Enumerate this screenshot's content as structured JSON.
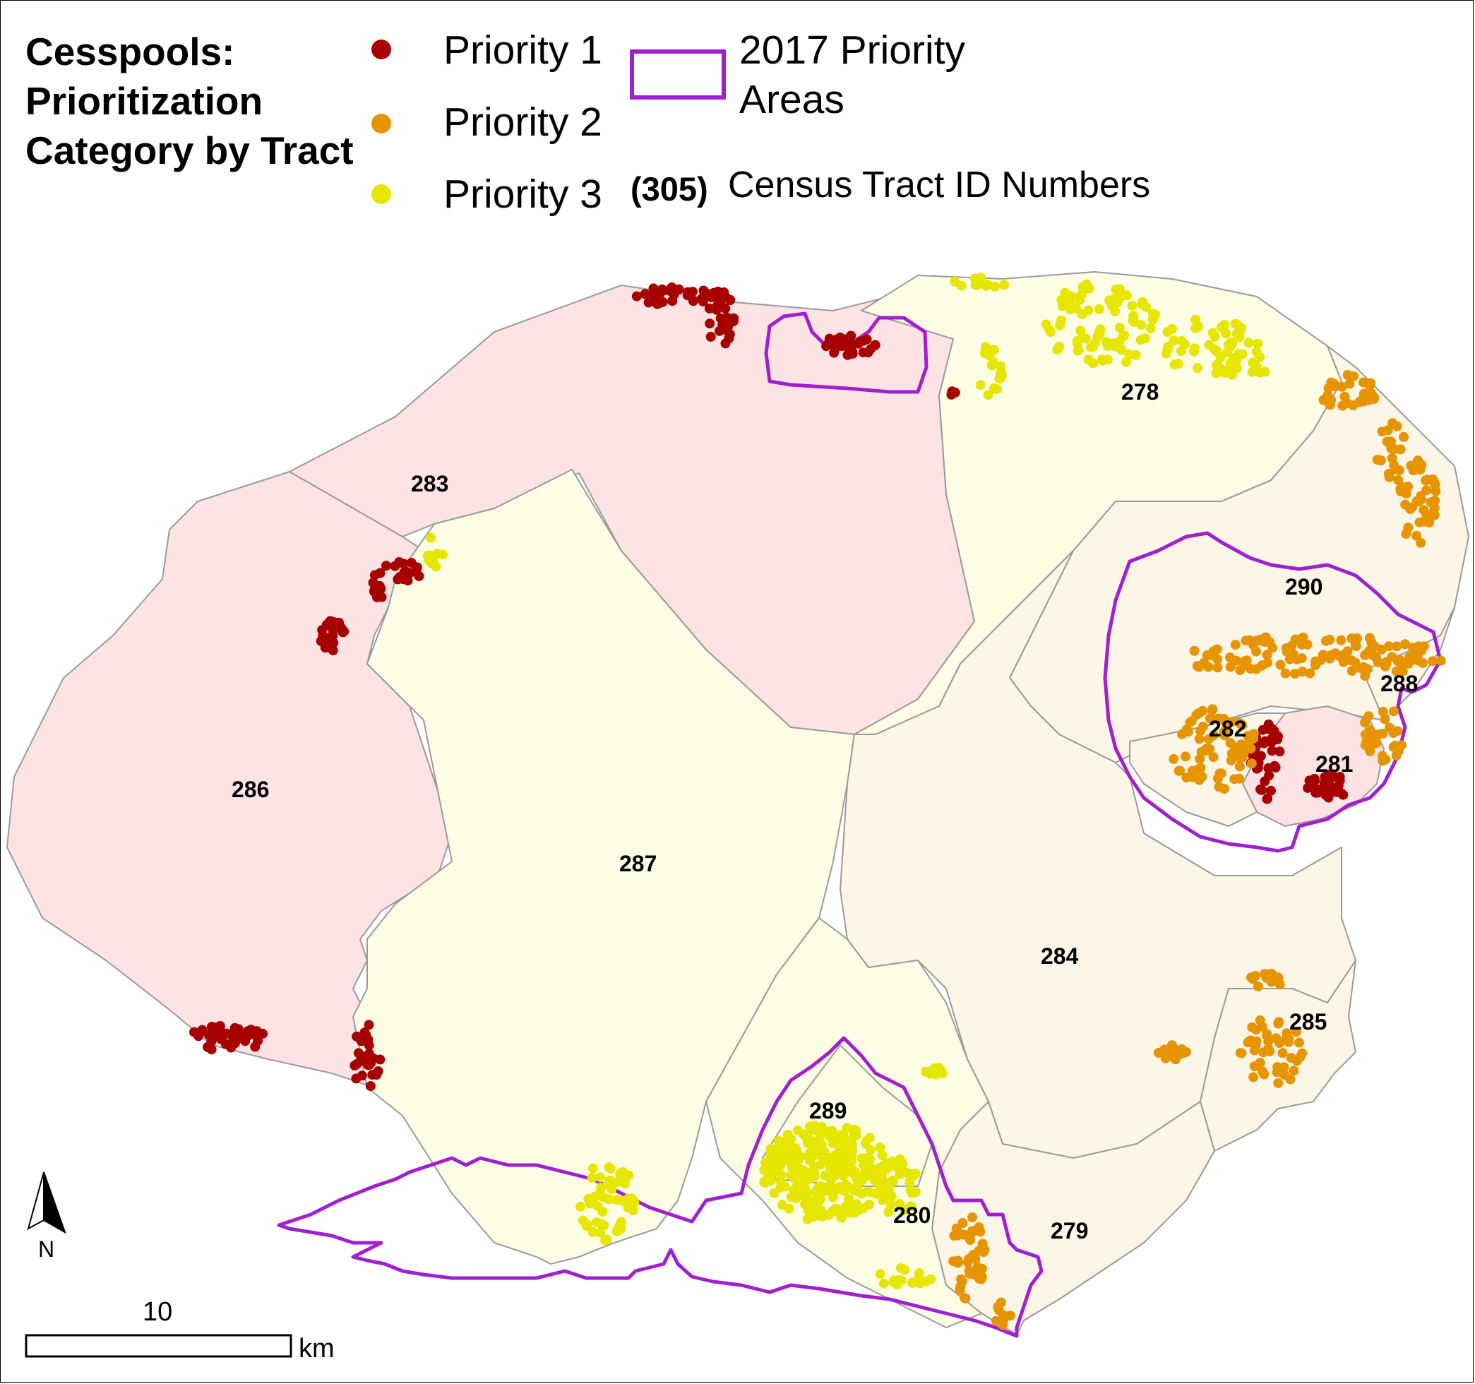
{
  "legend": {
    "title": "Cesspools: Prioritization Category by Tract",
    "priority1": {
      "label": "Priority 1",
      "color": "#a60000"
    },
    "priority2": {
      "label": "Priority 2",
      "color": "#e69500"
    },
    "priority3": {
      "label": "Priority 3",
      "color": "#e6e600"
    },
    "areas_line1": "2017 Priority",
    "areas_line2": "Areas",
    "areas_color": "#a020d0",
    "tract_id_example": "(305)",
    "tract_id_label": "Census Tract ID Numbers"
  },
  "tracts": [
    {
      "id": "278"
    },
    {
      "id": "279"
    },
    {
      "id": "280"
    },
    {
      "id": "281"
    },
    {
      "id": "282"
    },
    {
      "id": "283"
    },
    {
      "id": "284"
    },
    {
      "id": "285"
    },
    {
      "id": "286"
    },
    {
      "id": "287"
    },
    {
      "id": "288"
    },
    {
      "id": "289"
    },
    {
      "id": "290"
    }
  ],
  "fill_colors": {
    "priority1": "#fde3e3",
    "priority2": "#fdf5e6",
    "priority3": "#fdfde6",
    "boundary": "#9a9a9a"
  },
  "north_arrow": {
    "label": "N"
  },
  "scale_bar": {
    "value": "10",
    "unit": "km"
  }
}
